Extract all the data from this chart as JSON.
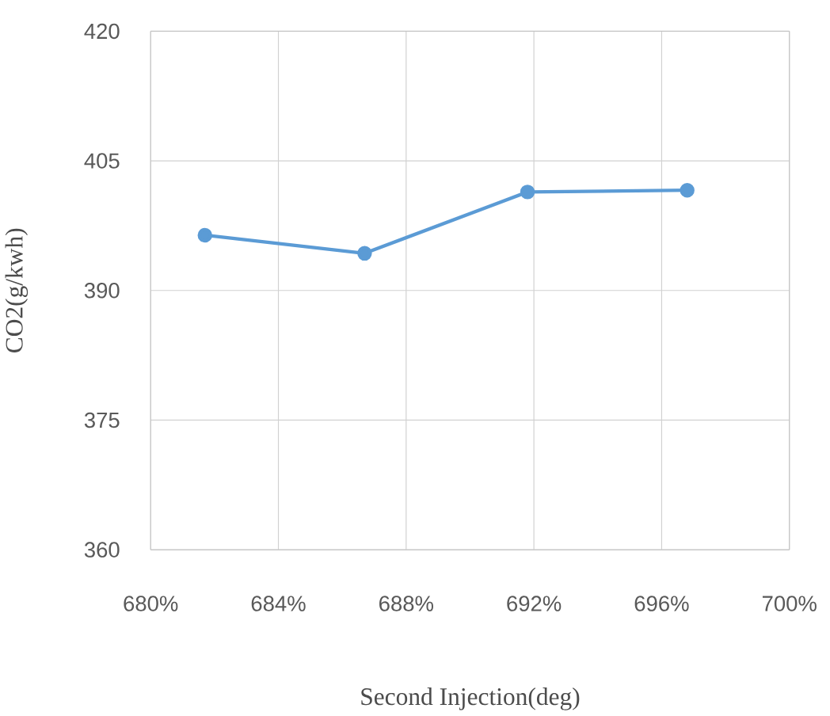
{
  "chart_data": {
    "type": "line",
    "xlabel": "Second Injection(deg)",
    "ylabel": "CO2(g/kwh)",
    "x": [
      681.7,
      686.7,
      691.8,
      696.8
    ],
    "series": [
      {
        "color": "#5b9bd5",
        "values": [
          396.4,
          394.3,
          401.4,
          401.6
        ]
      }
    ],
    "xlim": [
      680,
      700
    ],
    "ylim": [
      360,
      420
    ],
    "xticks": [
      {
        "value": 680,
        "label": "680%"
      },
      {
        "value": 684,
        "label": "684%"
      },
      {
        "value": 688,
        "label": "688%"
      },
      {
        "value": 692,
        "label": "692%"
      },
      {
        "value": 696,
        "label": "696%"
      },
      {
        "value": 700,
        "label": "700%"
      }
    ],
    "yticks": [
      360,
      375,
      390,
      405,
      420
    ],
    "grid": true,
    "marker": "circle",
    "line_style": "solid"
  }
}
